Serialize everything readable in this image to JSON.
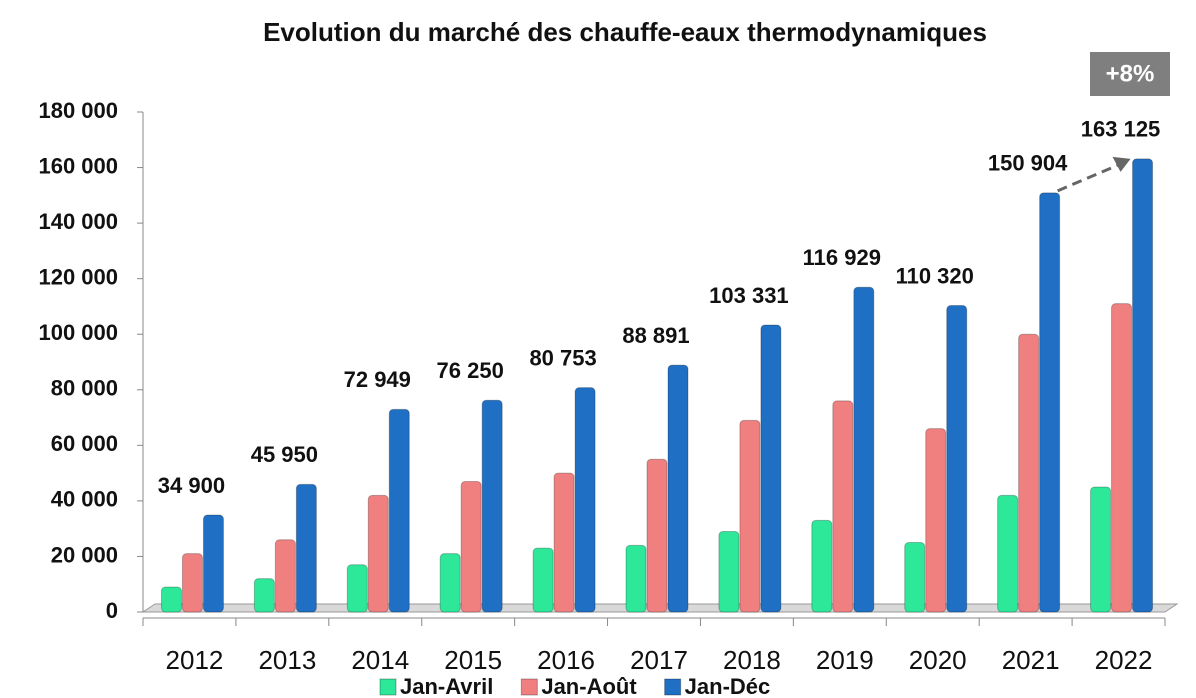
{
  "chart_data": {
    "type": "bar",
    "title": "Evolution du marché des chauffe-eaux thermodynamiques",
    "categories": [
      "2012",
      "2013",
      "2014",
      "2015",
      "2016",
      "2017",
      "2018",
      "2019",
      "2020",
      "2021",
      "2022"
    ],
    "series": [
      {
        "name": "Jan-Avril",
        "color": "#2ee89a",
        "values": [
          9000,
          12000,
          17000,
          21000,
          23000,
          24000,
          29000,
          33000,
          25000,
          42000,
          45000
        ]
      },
      {
        "name": "Jan-Août",
        "color": "#f08080",
        "values": [
          21000,
          26000,
          42000,
          47000,
          50000,
          55000,
          69000,
          76000,
          66000,
          100000,
          111000
        ]
      },
      {
        "name": "Jan-Déc",
        "color": "#1f6fc4",
        "values": [
          34900,
          45950,
          72949,
          76250,
          80753,
          88891,
          103331,
          116929,
          110320,
          150904,
          163125
        ],
        "value_labels": [
          "34 900",
          "45 950",
          "72 949",
          "76 250",
          "80 753",
          "88 891",
          "103 331",
          "116 929",
          "110 320",
          "150 904",
          "163 125"
        ]
      }
    ],
    "ylim": [
      0,
      180000
    ],
    "yticks": [
      0,
      {
        "value": 20000,
        "label": "20 000"
      },
      {
        "value": 40000,
        "label": "40 000"
      },
      {
        "value": 60000,
        "label": "60 000"
      },
      {
        "value": 80000,
        "label": "80 000"
      },
      {
        "value": 100000,
        "label": "100 000"
      },
      {
        "value": 120000,
        "label": "120 000"
      },
      {
        "value": 140000,
        "label": "140 000"
      },
      {
        "value": 160000,
        "label": "160 000"
      },
      {
        "value": 180000,
        "label": "180 000"
      }
    ],
    "annotation": "+8%",
    "grid": false
  }
}
